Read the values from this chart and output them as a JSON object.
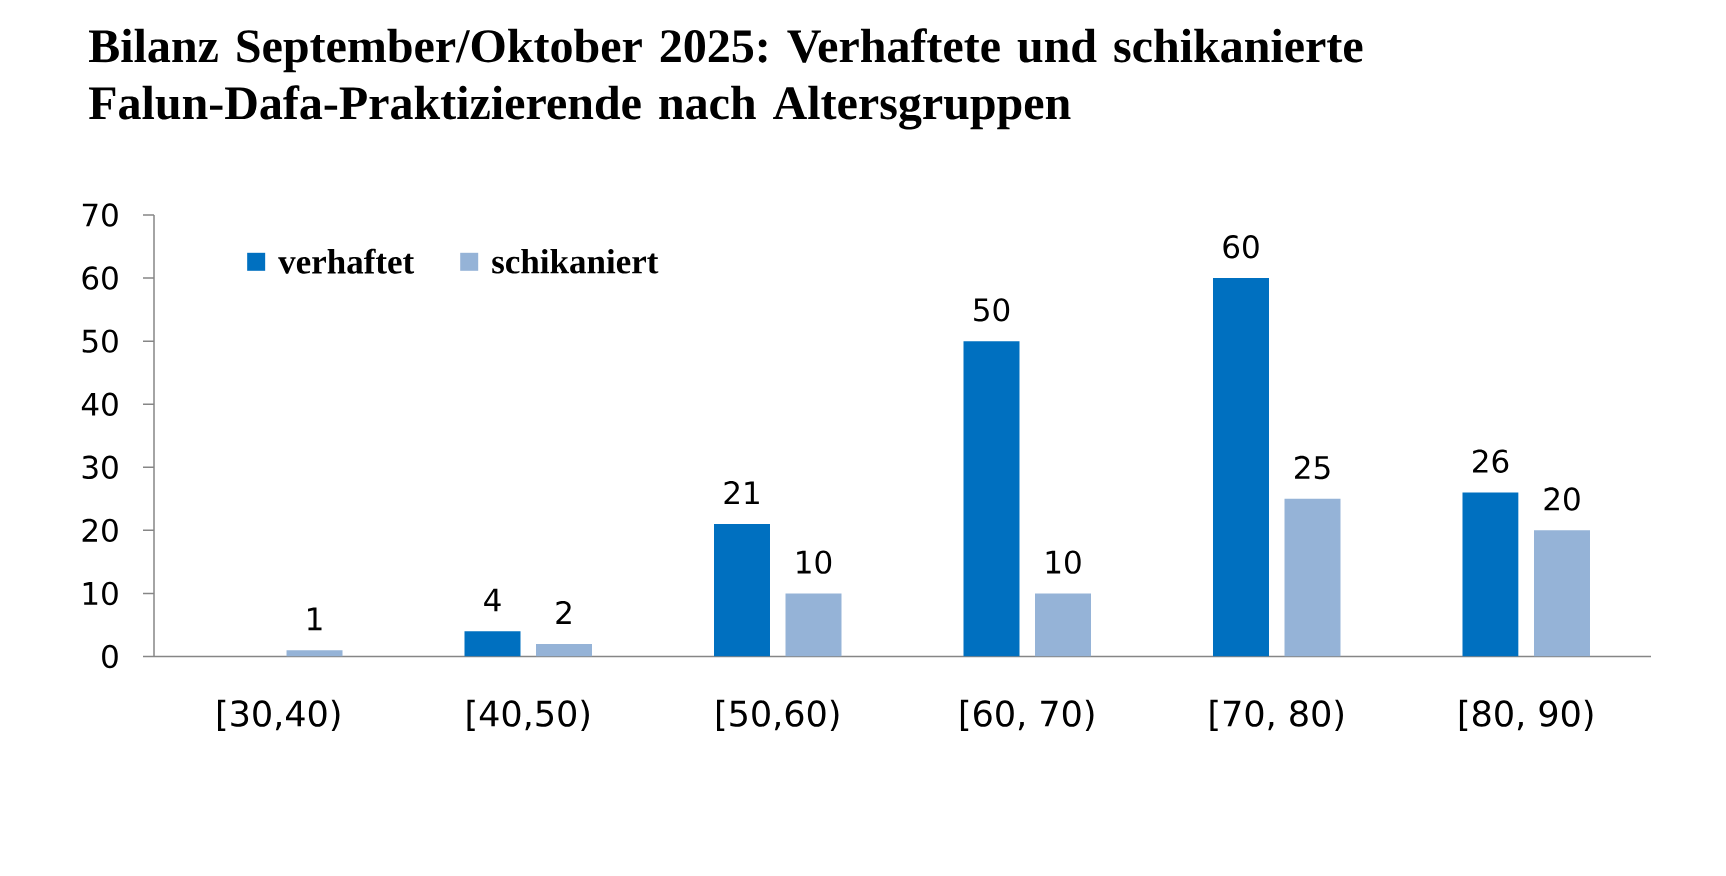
{
  "chart_data": {
    "type": "bar",
    "title": "Bilanz September/Oktober 2025: Verhaftete und schikanierte Falun-Dafa-Praktizierende nach Altersgruppen",
    "categories": [
      "[30,40)",
      "[40,50)",
      "[50,60)",
      "[60, 70)",
      "[70, 80)",
      "[80, 90)"
    ],
    "series": [
      {
        "name": "verhaftet",
        "color": "#0070c0",
        "values": [
          null,
          4,
          21,
          50,
          60,
          26
        ]
      },
      {
        "name": "schikaniert",
        "color": "#95b3d7",
        "values": [
          1,
          2,
          10,
          10,
          25,
          20
        ]
      }
    ],
    "ylim": [
      0,
      70
    ],
    "yticks": [
      0,
      10,
      20,
      30,
      40,
      50,
      60,
      70
    ],
    "legend": "top left",
    "data_labels": true
  }
}
